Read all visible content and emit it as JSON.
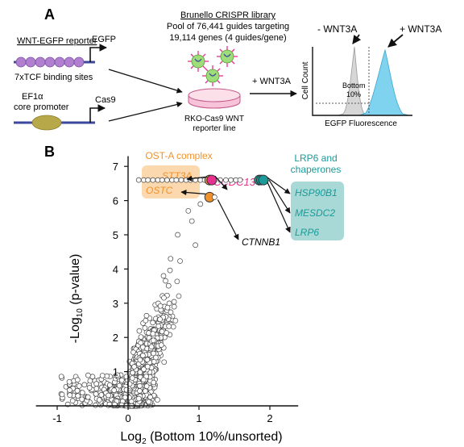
{
  "panel_a": {
    "label": "A",
    "reporter_title": "WNT-EGFP reporter",
    "egfp_label": "EGFP",
    "tcf_label": "7xTCF binding sites",
    "ef1a_label_line1": "EF1α",
    "ef1a_label_line2": "core promoter",
    "cas9_label": "Cas9",
    "library_title": "Brunello CRISPR library",
    "library_line1": "Pool of 76,441 guides targeting",
    "library_line2": "19,114 genes (4 guides/gene)",
    "cell_line_line1": "RKO-Cas9 WNT",
    "cell_line_line2": "reporter line",
    "wnt3a_arrow_label": "+ WNT3A",
    "minus_wnt3a": "- WNT3A",
    "plus_wnt3a": "+ WNT3A",
    "bottom_label_line1": "Bottom",
    "bottom_label_line2": "10%",
    "hist_ylabel": "Cell Count",
    "hist_xlabel": "EGFP Fluorescence",
    "colors": {
      "minus_fill": "#d6d6d6",
      "plus_fill": "#7fd3ef",
      "dish": "#f2a7c4",
      "tcf_sites": "#b07fd0",
      "promoter": "#b7a84a",
      "dna": "#3b4a9c"
    }
  },
  "panel_b": {
    "label": "B",
    "ost_title": "OST-A complex",
    "ost_genes": [
      "STT3A",
      "OSTC"
    ],
    "ccdc_gene": "CCDC134",
    "ctnnb1_gene": "CTNNB1",
    "lrp_title_line1": "LRP6 and",
    "lrp_title_line2": "chaperones",
    "lrp_genes": [
      "HSP90B1",
      "MESDC2",
      "LRP6"
    ],
    "colors": {
      "ost": "#f0922b",
      "ost_box": "#fbd8ad",
      "ccdc": "#e8308f",
      "lrp": "#1a9a98",
      "lrp_box": "#a9d9d6"
    }
  },
  "chart_data": {
    "type": "scatter",
    "xlabel_main": "Log",
    "xlabel_sub": "2",
    "xlabel_rest": " (Bottom 10%/unsorted)",
    "ylabel_main": "-Log",
    "ylabel_sub": "10",
    "ylabel_rest": " (p-value)",
    "xlim": [
      -1.3,
      2.4
    ],
    "ylim": [
      0,
      7.3
    ],
    "xticks": [
      -1,
      0,
      1,
      2
    ],
    "xtick_labels": [
      "-1",
      "0",
      "1",
      "2"
    ],
    "yticks": [
      1,
      2,
      3,
      4,
      5,
      6,
      7
    ],
    "ytick_labels": [
      "1",
      "2",
      "3",
      "4",
      "5",
      "6",
      "7"
    ],
    "highlighted_points": [
      {
        "gene": "STT3A",
        "x": 1.15,
        "y": 6.6,
        "group": "ost"
      },
      {
        "gene": "OSTC",
        "x": 1.15,
        "y": 6.1,
        "group": "ost"
      },
      {
        "gene": "CCDC134",
        "x": 1.18,
        "y": 6.6,
        "group": "ccdc"
      },
      {
        "gene": "CTNNB1",
        "x": 1.22,
        "y": 6.1,
        "group": "none"
      },
      {
        "gene": "HSP90B1",
        "x": 1.85,
        "y": 6.6,
        "group": "lrp"
      },
      {
        "gene": "MESDC2",
        "x": 1.88,
        "y": 6.6,
        "group": "lrp"
      },
      {
        "gene": "LRP6",
        "x": 1.91,
        "y": 6.6,
        "group": "lrp"
      }
    ],
    "saturated_row": {
      "y": 6.6,
      "x_values": [
        0.15,
        0.22,
        0.28,
        0.35,
        0.42,
        0.48,
        0.55,
        0.62,
        0.68,
        0.75,
        0.82,
        0.88,
        0.95,
        1.02,
        1.08,
        1.3,
        1.38,
        1.45,
        1.52,
        1.58
      ]
    },
    "bulk_cloud_summary": "approx. 1,500 genes; x roughly -1.0 to 1.3, y rising from 0 near x=0 to ~6 near x=1"
  }
}
